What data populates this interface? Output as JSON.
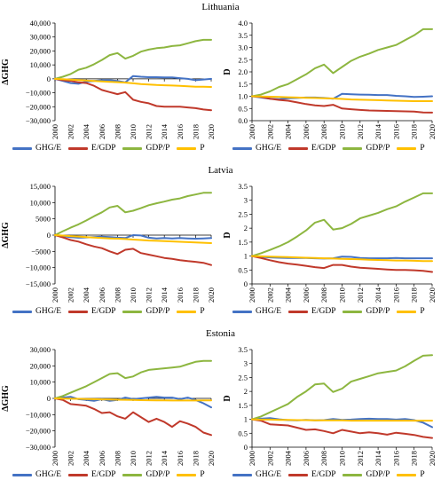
{
  "titles": [
    "Lithuania",
    "Latvia",
    "Estonia"
  ],
  "legend": {
    "items": [
      {
        "label": "GHG/E",
        "color": "#4472C4"
      },
      {
        "label": "E/GDP",
        "color": "#C0392B"
      },
      {
        "label": "GDP/P",
        "color": "#8DB640"
      },
      {
        "label": "P",
        "color": "#FFC000"
      }
    ]
  },
  "chart_data": [
    {
      "id": "lithuania-delta",
      "type": "line",
      "country": "Lithuania",
      "ylabel": "ΔGHG",
      "x": [
        2000,
        2001,
        2002,
        2003,
        2004,
        2005,
        2006,
        2007,
        2008,
        2009,
        2010,
        2011,
        2012,
        2013,
        2014,
        2015,
        2016,
        2017,
        2018,
        2019,
        2020
      ],
      "ylim": [
        -30000,
        40000
      ],
      "yticks": [
        -30000,
        -20000,
        -10000,
        0,
        10000,
        20000,
        30000,
        40000
      ],
      "ytick_labels": [
        "−30,000",
        "−20,000",
        "−10,000",
        "0",
        "10,000",
        "20,000",
        "30,000",
        "40,000"
      ],
      "xticks": [
        "2000",
        "2002",
        "2004",
        "2006",
        "2008",
        "2010",
        "2012",
        "2014",
        "2016",
        "2018",
        "2020"
      ],
      "series": [
        {
          "name": "GHG/E",
          "color": "#4472C4",
          "values": [
            0,
            -1500,
            -3000,
            -3500,
            -2000,
            -1500,
            -1000,
            -1000,
            -1500,
            -2500,
            2000,
            1500,
            1200,
            1200,
            1000,
            1000,
            500,
            0,
            -1000,
            -500,
            0
          ]
        },
        {
          "name": "E/GDP",
          "color": "#C0392B",
          "values": [
            0,
            -1000,
            -1500,
            -2500,
            -3000,
            -5000,
            -8000,
            -9500,
            -11000,
            -9500,
            -15000,
            -16500,
            -17500,
            -19500,
            -20000,
            -20000,
            -20000,
            -20500,
            -21000,
            -22000,
            -22500
          ]
        },
        {
          "name": "GDP/P",
          "color": "#8DB640",
          "values": [
            0,
            1500,
            3500,
            6500,
            8000,
            10500,
            13500,
            17000,
            18500,
            14500,
            16500,
            19500,
            21000,
            22000,
            22500,
            23500,
            24000,
            25500,
            27000,
            28000,
            28000
          ]
        },
        {
          "name": "P",
          "color": "#FFC000",
          "values": [
            0,
            -300,
            -600,
            -900,
            -1200,
            -1500,
            -1800,
            -2100,
            -2400,
            -2700,
            -3200,
            -3700,
            -4100,
            -4400,
            -4600,
            -4800,
            -5000,
            -5300,
            -5600,
            -5700,
            -5800
          ]
        }
      ]
    },
    {
      "id": "lithuania-d",
      "type": "line",
      "country": "Lithuania",
      "ylabel": "D",
      "x": [
        2000,
        2001,
        2002,
        2003,
        2004,
        2005,
        2006,
        2007,
        2008,
        2009,
        2010,
        2011,
        2012,
        2013,
        2014,
        2015,
        2016,
        2017,
        2018,
        2019,
        2020
      ],
      "ylim": [
        0,
        4.0
      ],
      "yticks": [
        0,
        0.5,
        1,
        1.5,
        2,
        2.5,
        3,
        3.5,
        4
      ],
      "ytick_labels": [
        "0.0",
        "0.5",
        "1.0",
        "1.5",
        "2.0",
        "2.5",
        "3.0",
        "3.5",
        "4.0"
      ],
      "xticks": [
        "2000",
        "2002",
        "2004",
        "2006",
        "2008",
        "2010",
        "2012",
        "2014",
        "2016",
        "2018",
        "2020"
      ],
      "series": [
        {
          "name": "GHG/E",
          "color": "#4472C4",
          "values": [
            1,
            0.95,
            0.9,
            0.88,
            0.92,
            0.93,
            0.95,
            0.95,
            0.93,
            0.9,
            1.1,
            1.08,
            1.07,
            1.06,
            1.05,
            1.05,
            1.02,
            1.0,
            0.97,
            0.98,
            1.0
          ]
        },
        {
          "name": "E/GDP",
          "color": "#C0392B",
          "values": [
            1,
            0.97,
            0.9,
            0.85,
            0.82,
            0.75,
            0.68,
            0.63,
            0.6,
            0.65,
            0.5,
            0.47,
            0.44,
            0.42,
            0.41,
            0.4,
            0.39,
            0.38,
            0.37,
            0.34,
            0.33
          ]
        },
        {
          "name": "GDP/P",
          "color": "#8DB640",
          "values": [
            1,
            1.07,
            1.2,
            1.38,
            1.5,
            1.7,
            1.9,
            2.15,
            2.3,
            1.95,
            2.2,
            2.45,
            2.62,
            2.75,
            2.9,
            3.0,
            3.1,
            3.3,
            3.5,
            3.75,
            3.75
          ]
        },
        {
          "name": "P",
          "color": "#FFC000",
          "values": [
            1,
            0.99,
            0.98,
            0.97,
            0.96,
            0.95,
            0.94,
            0.93,
            0.92,
            0.91,
            0.89,
            0.87,
            0.86,
            0.85,
            0.84,
            0.83,
            0.82,
            0.81,
            0.8,
            0.8,
            0.8
          ]
        }
      ]
    },
    {
      "id": "latvia-delta",
      "type": "line",
      "country": "Latvia",
      "ylabel": "ΔGHG",
      "x": [
        2000,
        2001,
        2002,
        2003,
        2004,
        2005,
        2006,
        2007,
        2008,
        2009,
        2010,
        2011,
        2012,
        2013,
        2014,
        2015,
        2016,
        2017,
        2018,
        2019,
        2020
      ],
      "ylim": [
        -15000,
        15000
      ],
      "yticks": [
        -15000,
        -10000,
        -5000,
        0,
        5000,
        10000,
        15000
      ],
      "ytick_labels": [
        "−15,000",
        "−10,000",
        "−5000",
        "0",
        "5000",
        "10,000",
        "15,000"
      ],
      "xticks": [
        "2000",
        "2002",
        "2004",
        "2006",
        "2008",
        "2010",
        "2012",
        "2014",
        "2016",
        "2018",
        "2020"
      ],
      "series": [
        {
          "name": "GHG/E",
          "color": "#4472C4",
          "values": [
            0,
            -300,
            -600,
            -800,
            -700,
            -600,
            -500,
            -600,
            -800,
            -900,
            0,
            -100,
            -800,
            -1000,
            -900,
            -1000,
            -900,
            -1000,
            -1100,
            -1000,
            -900
          ]
        },
        {
          "name": "E/GDP",
          "color": "#C0392B",
          "values": [
            0,
            -700,
            -1500,
            -2000,
            -2800,
            -3500,
            -4000,
            -5000,
            -5800,
            -4500,
            -4200,
            -5500,
            -6000,
            -6500,
            -7000,
            -7300,
            -7700,
            -8000,
            -8200,
            -8500,
            -9200
          ]
        },
        {
          "name": "GDP/P",
          "color": "#8DB640",
          "values": [
            0,
            1200,
            2300,
            3300,
            4500,
            5800,
            7000,
            8500,
            9000,
            7000,
            7500,
            8300,
            9200,
            9800,
            10300,
            10900,
            11300,
            12000,
            12500,
            13000,
            13000
          ]
        },
        {
          "name": "P",
          "color": "#FFC000",
          "values": [
            0,
            -150,
            -300,
            -450,
            -600,
            -750,
            -900,
            -1000,
            -1100,
            -1200,
            -1350,
            -1500,
            -1650,
            -1750,
            -1850,
            -1950,
            -2050,
            -2150,
            -2250,
            -2350,
            -2450
          ]
        }
      ]
    },
    {
      "id": "latvia-d",
      "type": "line",
      "country": "Latvia",
      "ylabel": "D",
      "x": [
        2000,
        2001,
        2002,
        2003,
        2004,
        2005,
        2006,
        2007,
        2008,
        2009,
        2010,
        2011,
        2012,
        2013,
        2014,
        2015,
        2016,
        2017,
        2018,
        2019,
        2020
      ],
      "ylim": [
        0,
        3.5
      ],
      "yticks": [
        0,
        0.5,
        1,
        1.5,
        2,
        2.5,
        3,
        3.5
      ],
      "ytick_labels": [
        "0",
        "0.5",
        "1",
        "1.5",
        "2",
        "2.5",
        "3",
        "3.5"
      ],
      "xticks": [
        "2000",
        "2002",
        "2004",
        "2006",
        "2008",
        "2010",
        "2012",
        "2014",
        "2016",
        "2018",
        "2020"
      ],
      "series": [
        {
          "name": "GHG/E",
          "color": "#4472C4",
          "values": [
            1,
            0.97,
            0.95,
            0.94,
            0.93,
            0.93,
            0.93,
            0.92,
            0.91,
            0.92,
            0.98,
            0.97,
            0.93,
            0.92,
            0.92,
            0.92,
            0.93,
            0.92,
            0.92,
            0.92,
            0.92
          ]
        },
        {
          "name": "E/GDP",
          "color": "#C0392B",
          "values": [
            1,
            0.93,
            0.85,
            0.78,
            0.73,
            0.69,
            0.65,
            0.6,
            0.57,
            0.68,
            0.68,
            0.62,
            0.58,
            0.56,
            0.54,
            0.52,
            0.5,
            0.5,
            0.49,
            0.47,
            0.43
          ]
        },
        {
          "name": "GDP/P",
          "color": "#8DB640",
          "values": [
            1,
            1.1,
            1.22,
            1.35,
            1.5,
            1.7,
            1.92,
            2.2,
            2.3,
            1.95,
            2.0,
            2.15,
            2.35,
            2.45,
            2.55,
            2.68,
            2.78,
            2.95,
            3.1,
            3.25,
            3.25
          ]
        },
        {
          "name": "P",
          "color": "#FFC000",
          "values": [
            1,
            0.99,
            0.98,
            0.97,
            0.96,
            0.95,
            0.94,
            0.93,
            0.92,
            0.91,
            0.9,
            0.89,
            0.88,
            0.87,
            0.86,
            0.85,
            0.84,
            0.84,
            0.83,
            0.82,
            0.82
          ]
        }
      ]
    },
    {
      "id": "estonia-delta",
      "type": "line",
      "country": "Estonia",
      "ylabel": "ΔGHG",
      "x": [
        2000,
        2001,
        2002,
        2003,
        2004,
        2005,
        2006,
        2007,
        2008,
        2009,
        2010,
        2011,
        2012,
        2013,
        2014,
        2015,
        2016,
        2017,
        2018,
        2019,
        2020
      ],
      "ylim": [
        -30000,
        30000
      ],
      "yticks": [
        -30000,
        -20000,
        -10000,
        0,
        10000,
        20000,
        30000
      ],
      "ytick_labels": [
        "−30,000",
        "−20,000",
        "−10,000",
        "0",
        "10,000",
        "20,000",
        "30,000"
      ],
      "xticks": [
        "2000",
        "2002",
        "2004",
        "2006",
        "2008",
        "2010",
        "2012",
        "2014",
        "2016",
        "2018",
        "2020"
      ],
      "series": [
        {
          "name": "GHG/E",
          "color": "#4472C4",
          "values": [
            0,
            500,
            1000,
            -500,
            -1000,
            -1500,
            -500,
            -1500,
            -1000,
            500,
            -500,
            0,
            500,
            1000,
            500,
            500,
            -500,
            500,
            -1000,
            -3000,
            -5500
          ]
        },
        {
          "name": "E/GDP",
          "color": "#C0392B",
          "values": [
            0,
            -1000,
            -3500,
            -4000,
            -4500,
            -6500,
            -9000,
            -8500,
            -11000,
            -12500,
            -8500,
            -11500,
            -14500,
            -12500,
            -14500,
            -17500,
            -14000,
            -15500,
            -17500,
            -21000,
            -22500
          ]
        },
        {
          "name": "GDP/P",
          "color": "#8DB640",
          "values": [
            0,
            1500,
            3500,
            5500,
            7500,
            10000,
            12500,
            15000,
            15500,
            12500,
            13500,
            16000,
            17500,
            18000,
            18500,
            19000,
            19500,
            21000,
            22500,
            23000,
            23000
          ]
        },
        {
          "name": "P",
          "color": "#FFC000",
          "values": [
            0,
            -100,
            -200,
            -300,
            -400,
            -500,
            -600,
            -700,
            -800,
            -900,
            -1000,
            -1100,
            -1150,
            -1200,
            -1250,
            -1300,
            -1300,
            -1300,
            -1300,
            -1250,
            -1200
          ]
        }
      ]
    },
    {
      "id": "estonia-d",
      "type": "line",
      "country": "Estonia",
      "ylabel": "D",
      "x": [
        2000,
        2001,
        2002,
        2003,
        2004,
        2005,
        2006,
        2007,
        2008,
        2009,
        2010,
        2011,
        2012,
        2013,
        2014,
        2015,
        2016,
        2017,
        2018,
        2019,
        2020
      ],
      "ylim": [
        0,
        3.5
      ],
      "yticks": [
        0,
        0.5,
        1,
        1.5,
        2,
        2.5,
        3,
        3.5
      ],
      "ytick_labels": [
        "0",
        "0.5",
        "1",
        "1.5",
        "2",
        "2.5",
        "3",
        "3.5"
      ],
      "xticks": [
        "2000",
        "2002",
        "2004",
        "2006",
        "2008",
        "2010",
        "2012",
        "2014",
        "2016",
        "2018",
        "2020"
      ],
      "series": [
        {
          "name": "GHG/E",
          "color": "#4472C4",
          "values": [
            1,
            1.02,
            1.04,
            1.0,
            0.97,
            0.96,
            0.98,
            0.96,
            0.97,
            1.01,
            0.98,
            0.99,
            1.01,
            1.02,
            1.01,
            1.01,
            0.99,
            1.01,
            0.97,
            0.88,
            0.72
          ]
        },
        {
          "name": "E/GDP",
          "color": "#C0392B",
          "values": [
            1,
            0.95,
            0.82,
            0.8,
            0.78,
            0.7,
            0.62,
            0.64,
            0.58,
            0.5,
            0.62,
            0.56,
            0.5,
            0.53,
            0.5,
            0.45,
            0.52,
            0.48,
            0.44,
            0.37,
            0.33
          ]
        },
        {
          "name": "GDP/P",
          "color": "#8DB640",
          "values": [
            1,
            1.1,
            1.25,
            1.4,
            1.55,
            1.8,
            2.0,
            2.25,
            2.28,
            1.98,
            2.1,
            2.35,
            2.45,
            2.55,
            2.65,
            2.7,
            2.75,
            2.9,
            3.1,
            3.28,
            3.3
          ]
        },
        {
          "name": "P",
          "color": "#FFC000",
          "values": [
            1,
            0.99,
            0.99,
            0.98,
            0.98,
            0.97,
            0.97,
            0.96,
            0.96,
            0.96,
            0.96,
            0.95,
            0.95,
            0.95,
            0.95,
            0.95,
            0.95,
            0.95,
            0.95,
            0.95,
            0.95
          ]
        }
      ]
    }
  ]
}
